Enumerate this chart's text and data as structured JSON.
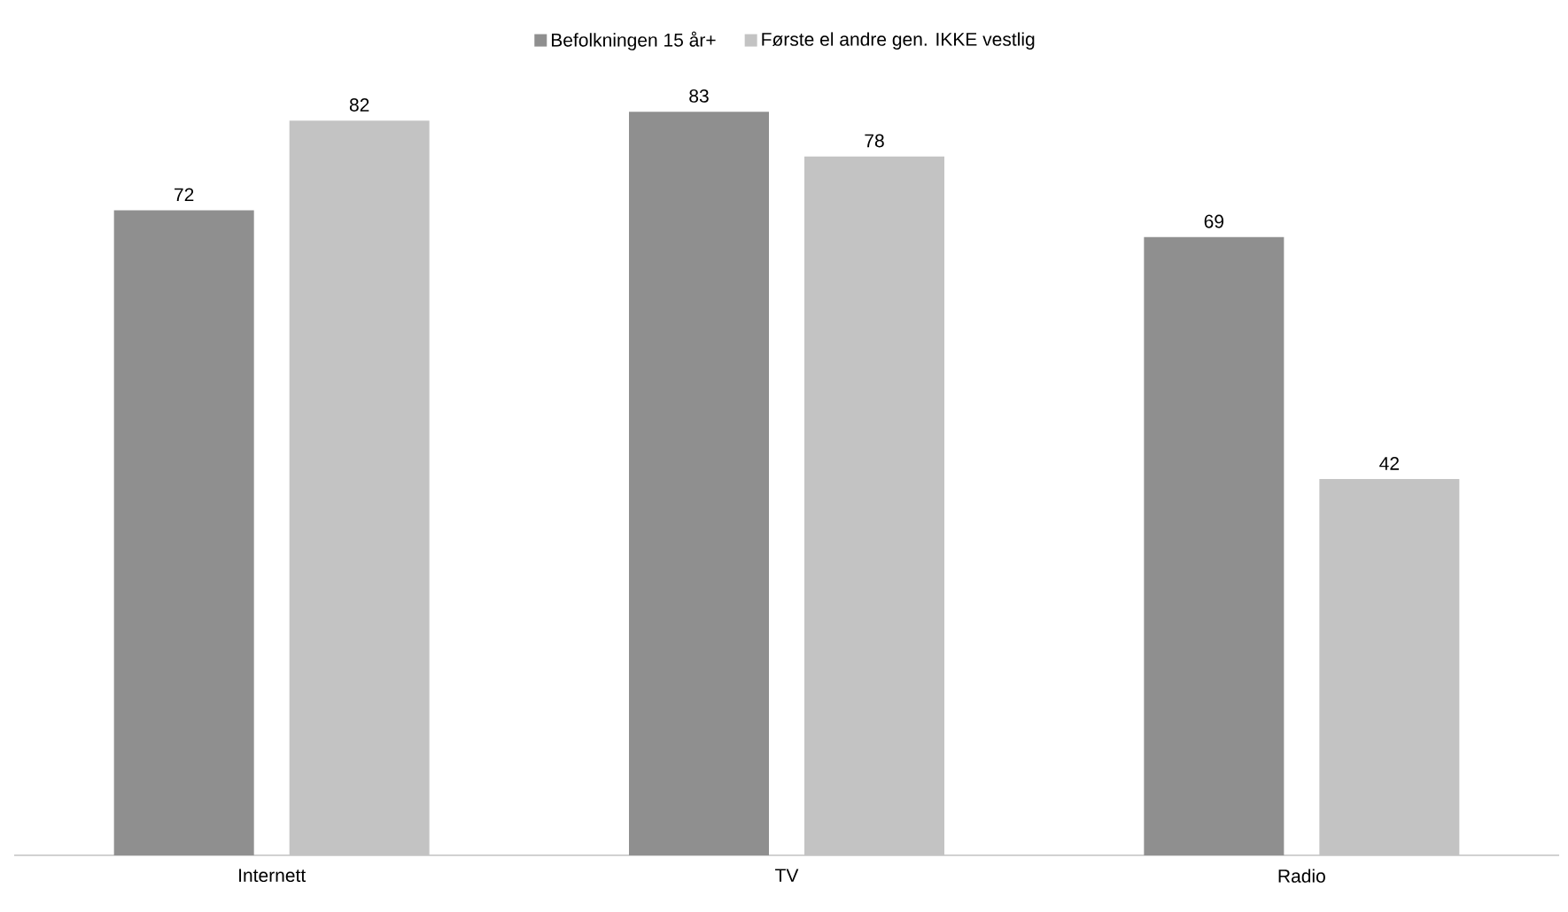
{
  "chart_data": {
    "type": "bar",
    "categories": [
      "Internett",
      "TV",
      "Radio"
    ],
    "series": [
      {
        "name": "Befolkningen 15 år+",
        "color": "#8f8f8f",
        "values": [
          72,
          83,
          69
        ]
      },
      {
        "name": "Første el andre gen. IKKE vestlig",
        "color": "#c3c3c3",
        "values": [
          82,
          78,
          42
        ]
      }
    ],
    "data_labels": true,
    "legend": "top"
  }
}
